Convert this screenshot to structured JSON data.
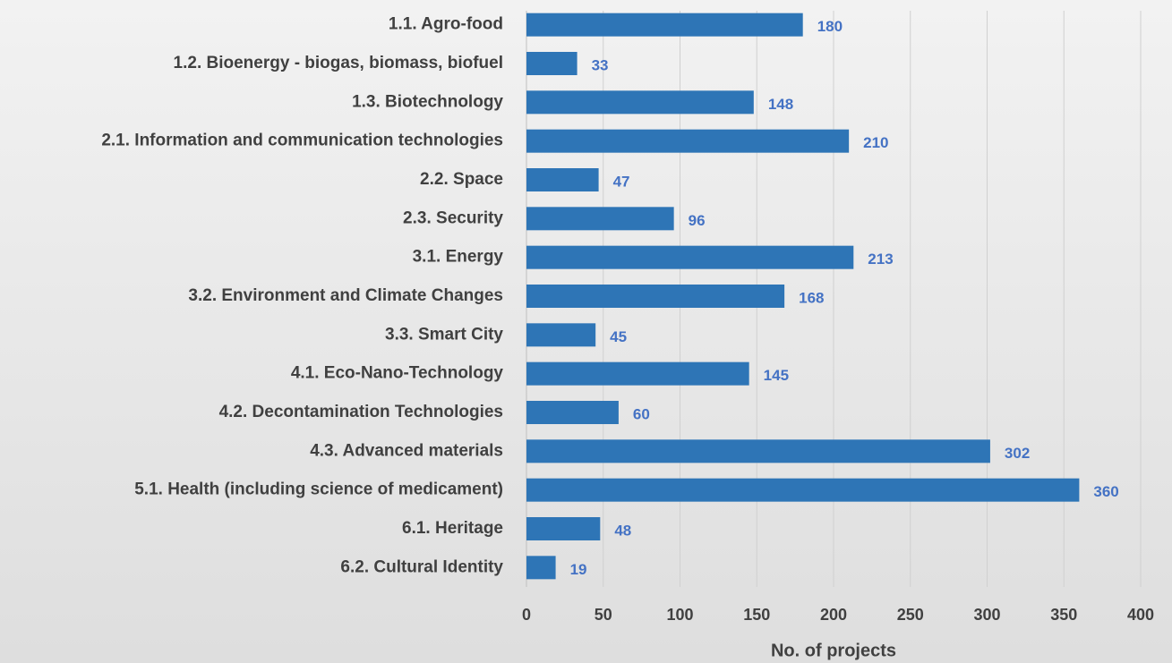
{
  "chart_data": {
    "type": "bar",
    "orientation": "horizontal",
    "categories": [
      "1.1. Agro-food",
      "1.2. Bioenergy - biogas, biomass, biofuel",
      "1.3. Biotechnology",
      "2.1. Information and communication technologies",
      "2.2. Space",
      "2.3. Security",
      "3.1. Energy",
      "3.2. Environment and Climate Changes",
      "3.3. Smart City",
      "4.1. Eco-Nano-Technology",
      "4.2. Decontamination Technologies",
      "4.3. Advanced materials",
      "5.1. Health (including science of medicament)",
      "6.1. Heritage",
      "6.2. Cultural Identity"
    ],
    "values": [
      180,
      33,
      148,
      210,
      47,
      96,
      213,
      168,
      45,
      145,
      60,
      302,
      360,
      48,
      19
    ],
    "color": "#2e75b6",
    "x_label": "No. of projects",
    "xlim": [
      0,
      400
    ],
    "xticks": [
      0,
      50,
      100,
      150,
      200,
      250,
      300,
      350,
      400
    ],
    "grid": true
  }
}
